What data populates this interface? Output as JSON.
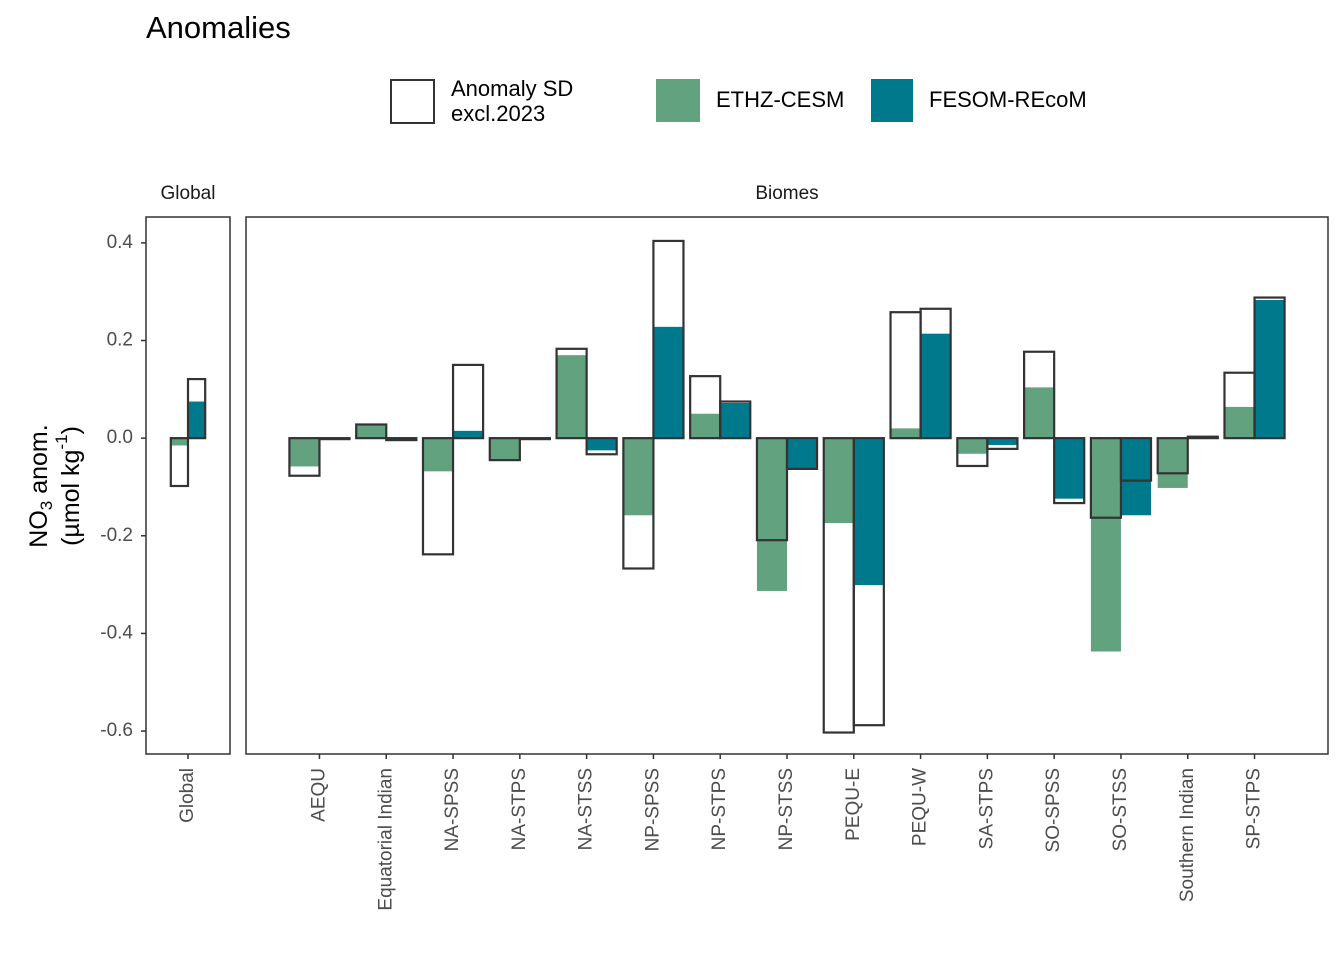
{
  "chart_data": {
    "type": "bar",
    "title": "Anomalies",
    "ylabel": {
      "line1": [
        "NO",
        "3",
        " anom."
      ],
      "line2": [
        "(µmol kg",
        "-1",
        ")"
      ]
    },
    "ylim": [
      -0.647,
      0.453
    ],
    "yticks": [
      -0.6,
      -0.4,
      -0.2,
      {
        "value": 0,
        "label": "0.0"
      },
      0.2,
      0.4
    ],
    "sd_legend": [
      "Anomaly SD",
      "excl.2023"
    ],
    "series": [
      {
        "name": "ETHZ-CESM",
        "color": "#63a27f"
      },
      {
        "name": "FESOM-REcoM",
        "color": "#00798c"
      }
    ],
    "panels": [
      {
        "strip": "Global",
        "categories": [
          "Global"
        ],
        "values": [
          [
            -0.015
          ],
          [
            0.075
          ]
        ],
        "sd": [
          [
            -0.098
          ],
          [
            0.121
          ]
        ]
      },
      {
        "strip": "Biomes",
        "categories": [
          "AEQU",
          "Equatorial Indian",
          "NA-SPSS",
          "NA-STPS",
          "NA-STSS",
          "NP-SPSS",
          "NP-STPS",
          "NP-STSS",
          "PEQU-E",
          "PEQU-W",
          "SA-STPS",
          "SO-SPSS",
          "SO-STSS",
          "Southern Indian",
          "SP-STPS"
        ],
        "values": [
          [
            -0.058,
            0.03,
            -0.068,
            -0.045,
            0.17,
            -0.158,
            0.05,
            -0.313,
            -0.174,
            0.02,
            -0.032,
            0.104,
            -0.437,
            -0.102,
            0.064
          ],
          [
            -0.002,
            -0.003,
            0.015,
            -0.001,
            -0.025,
            0.228,
            0.072,
            -0.063,
            -0.301,
            0.214,
            -0.014,
            -0.124,
            -0.158,
            0.002,
            0.283
          ]
        ],
        "sd": [
          [
            -0.077,
            0.028,
            -0.238,
            -0.045,
            0.183,
            -0.267,
            0.127,
            -0.209,
            -0.603,
            0.258,
            -0.057,
            0.177,
            -0.163,
            -0.072,
            0.134
          ],
          [
            -0.002,
            -0.004,
            0.15,
            -0.002,
            -0.033,
            0.404,
            0.075,
            -0.063,
            -0.588,
            0.265,
            -0.022,
            -0.133,
            -0.087,
            0.003,
            0.288
          ]
        ]
      }
    ]
  }
}
